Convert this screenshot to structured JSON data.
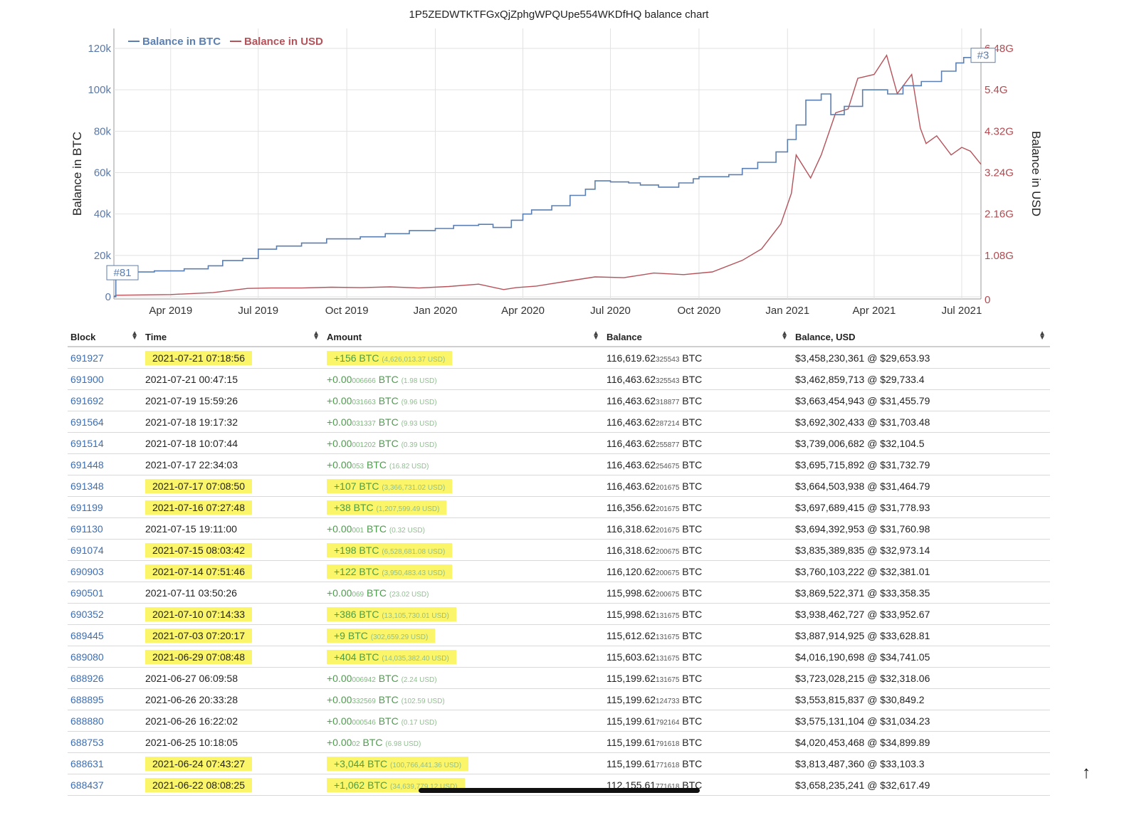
{
  "chart_data": {
    "type": "line",
    "title": "1P5ZEDWTKTFGxQjZphgWPQUpe554WKDfHQ balance chart",
    "ylabel_left": "Balance in BTC",
    "ylabel_right": "Balance in USD",
    "legend": [
      "Balance in BTC",
      "Balance in USD"
    ],
    "legend_position": "top-left",
    "grid": true,
    "colors": {
      "btc": "#5b7fb0",
      "usd": "#b5525a"
    },
    "y_left_ticks": [
      "0",
      "20k",
      "40k",
      "60k",
      "80k",
      "100k",
      "120k"
    ],
    "y_left_values": [
      0,
      20000,
      40000,
      60000,
      80000,
      100000,
      120000
    ],
    "y_right_ticks": [
      "0",
      "1.08G",
      "2.16G",
      "3.24G",
      "4.32G",
      "5.4G",
      "6.48G"
    ],
    "y_right_values": [
      0,
      1080000000,
      2160000000,
      3240000000,
      4320000000,
      5400000000,
      6480000000
    ],
    "x_ticks": [
      "Apr 2019",
      "Jul 2019",
      "Oct 2019",
      "Jan 2020",
      "Apr 2020",
      "Jul 2020",
      "Oct 2020",
      "Jan 2021",
      "Apr 2021",
      "Jul 2021"
    ],
    "x_tick_dates": [
      "2019-04-01",
      "2019-07-01",
      "2019-10-01",
      "2020-01-01",
      "2020-04-01",
      "2020-07-01",
      "2020-10-01",
      "2021-01-01",
      "2021-04-01",
      "2021-07-01"
    ],
    "x_range": [
      "2019-02-01",
      "2021-07-21"
    ],
    "annotations": [
      {
        "label": "#81",
        "date": "2019-02-01",
        "y": 12000
      },
      {
        "label": "#3",
        "date": "2021-07-21",
        "y": 117000
      }
    ],
    "series": [
      {
        "name": "Balance in BTC",
        "axis": "left",
        "points": [
          [
            "2019-02-01",
            0
          ],
          [
            "2019-02-03",
            12000
          ],
          [
            "2019-03-15",
            12500
          ],
          [
            "2019-04-15",
            13500
          ],
          [
            "2019-05-10",
            15000
          ],
          [
            "2019-05-25",
            17500
          ],
          [
            "2019-06-15",
            18500
          ],
          [
            "2019-07-01",
            23000
          ],
          [
            "2019-07-20",
            24500
          ],
          [
            "2019-08-15",
            26000
          ],
          [
            "2019-09-10",
            28000
          ],
          [
            "2019-10-01",
            28000
          ],
          [
            "2019-10-15",
            29000
          ],
          [
            "2019-11-10",
            30500
          ],
          [
            "2019-12-05",
            32000
          ],
          [
            "2020-01-01",
            33000
          ],
          [
            "2020-01-20",
            34500
          ],
          [
            "2020-02-15",
            35000
          ],
          [
            "2020-03-01",
            33500
          ],
          [
            "2020-03-20",
            37000
          ],
          [
            "2020-04-01",
            40000
          ],
          [
            "2020-04-10",
            42000
          ],
          [
            "2020-05-01",
            44000
          ],
          [
            "2020-05-20",
            49000
          ],
          [
            "2020-06-05",
            52000
          ],
          [
            "2020-06-15",
            56000
          ],
          [
            "2020-07-01",
            55500
          ],
          [
            "2020-07-20",
            55000
          ],
          [
            "2020-08-01",
            54000
          ],
          [
            "2020-08-20",
            53000
          ],
          [
            "2020-09-10",
            55000
          ],
          [
            "2020-09-25",
            57000
          ],
          [
            "2020-10-01",
            58000
          ],
          [
            "2020-11-01",
            59000
          ],
          [
            "2020-11-15",
            62000
          ],
          [
            "2020-12-01",
            65000
          ],
          [
            "2020-12-20",
            70000
          ],
          [
            "2021-01-01",
            76000
          ],
          [
            "2021-01-10",
            83000
          ],
          [
            "2021-01-20",
            95000
          ],
          [
            "2021-02-05",
            98000
          ],
          [
            "2021-02-15",
            88000
          ],
          [
            "2021-03-01",
            92000
          ],
          [
            "2021-03-20",
            100000
          ],
          [
            "2021-04-01",
            100000
          ],
          [
            "2021-04-15",
            98000
          ],
          [
            "2021-05-01",
            102000
          ],
          [
            "2021-05-20",
            104000
          ],
          [
            "2021-06-10",
            109000
          ],
          [
            "2021-06-25",
            113000
          ],
          [
            "2021-07-03",
            115600
          ],
          [
            "2021-07-15",
            116300
          ],
          [
            "2021-07-21",
            116620
          ]
        ]
      },
      {
        "name": "Balance in USD",
        "axis": "right",
        "points": [
          [
            "2019-02-01",
            0
          ],
          [
            "2019-02-03",
            40000000
          ],
          [
            "2019-04-01",
            60000000
          ],
          [
            "2019-05-15",
            110000000
          ],
          [
            "2019-06-20",
            220000000
          ],
          [
            "2019-07-15",
            230000000
          ],
          [
            "2019-08-15",
            230000000
          ],
          [
            "2019-09-15",
            250000000
          ],
          [
            "2019-10-15",
            240000000
          ],
          [
            "2019-11-15",
            260000000
          ],
          [
            "2019-12-15",
            230000000
          ],
          [
            "2020-01-15",
            270000000
          ],
          [
            "2020-02-15",
            330000000
          ],
          [
            "2020-03-12",
            190000000
          ],
          [
            "2020-03-25",
            240000000
          ],
          [
            "2020-04-15",
            280000000
          ],
          [
            "2020-05-15",
            400000000
          ],
          [
            "2020-06-15",
            520000000
          ],
          [
            "2020-07-15",
            500000000
          ],
          [
            "2020-08-15",
            620000000
          ],
          [
            "2020-09-15",
            580000000
          ],
          [
            "2020-10-15",
            650000000
          ],
          [
            "2020-11-15",
            950000000
          ],
          [
            "2020-12-05",
            1250000000
          ],
          [
            "2020-12-25",
            1900000000
          ],
          [
            "2021-01-05",
            2700000000
          ],
          [
            "2021-01-10",
            3700000000
          ],
          [
            "2021-01-25",
            3100000000
          ],
          [
            "2021-02-05",
            3700000000
          ],
          [
            "2021-02-20",
            4800000000
          ],
          [
            "2021-03-05",
            4900000000
          ],
          [
            "2021-03-15",
            5700000000
          ],
          [
            "2021-04-01",
            5800000000
          ],
          [
            "2021-04-14",
            6300000000
          ],
          [
            "2021-04-25",
            5300000000
          ],
          [
            "2021-05-10",
            5800000000
          ],
          [
            "2021-05-19",
            4400000000
          ],
          [
            "2021-05-25",
            4000000000
          ],
          [
            "2021-06-05",
            4200000000
          ],
          [
            "2021-06-20",
            3700000000
          ],
          [
            "2021-07-01",
            3900000000
          ],
          [
            "2021-07-10",
            3800000000
          ],
          [
            "2021-07-21",
            3458000000
          ]
        ]
      }
    ]
  },
  "table": {
    "headers": [
      "Block",
      "Time",
      "Amount",
      "Balance",
      "Balance, USD"
    ],
    "rows": [
      {
        "block": "691927",
        "time": "2021-07-21 07:18:56",
        "amt_main": "+156",
        "amt_small": "",
        "amt_unit": "BTC",
        "amt_usd": "(4,626,013.37 USD)",
        "bal_main": "116,619.62",
        "bal_small": "325543",
        "bal_unit": "BTC",
        "usd": "$3,458,230,361 @ $29,653.93",
        "hl": true
      },
      {
        "block": "691900",
        "time": "2021-07-21 00:47:15",
        "amt_main": "+0.00",
        "amt_small": "006666",
        "amt_unit": "BTC",
        "amt_usd": "(1.98 USD)",
        "bal_main": "116,463.62",
        "bal_small": "325543",
        "bal_unit": "BTC",
        "usd": "$3,462,859,713 @ $29,733.4",
        "hl": false
      },
      {
        "block": "691692",
        "time": "2021-07-19 15:59:26",
        "amt_main": "+0.00",
        "amt_small": "031663",
        "amt_unit": "BTC",
        "amt_usd": "(9.96 USD)",
        "bal_main": "116,463.62",
        "bal_small": "318877",
        "bal_unit": "BTC",
        "usd": "$3,663,454,943 @ $31,455.79",
        "hl": false
      },
      {
        "block": "691564",
        "time": "2021-07-18 19:17:32",
        "amt_main": "+0.00",
        "amt_small": "031337",
        "amt_unit": "BTC",
        "amt_usd": "(9.93 USD)",
        "bal_main": "116,463.62",
        "bal_small": "287214",
        "bal_unit": "BTC",
        "usd": "$3,692,302,433 @ $31,703.48",
        "hl": false
      },
      {
        "block": "691514",
        "time": "2021-07-18 10:07:44",
        "amt_main": "+0.00",
        "amt_small": "001202",
        "amt_unit": "BTC",
        "amt_usd": "(0.39 USD)",
        "bal_main": "116,463.62",
        "bal_small": "255877",
        "bal_unit": "BTC",
        "usd": "$3,739,006,682 @ $32,104.5",
        "hl": false
      },
      {
        "block": "691448",
        "time": "2021-07-17 22:34:03",
        "amt_main": "+0.00",
        "amt_small": "053",
        "amt_unit": "BTC",
        "amt_usd": "(16.82 USD)",
        "bal_main": "116,463.62",
        "bal_small": "254675",
        "bal_unit": "BTC",
        "usd": "$3,695,715,892 @ $31,732.79",
        "hl": false
      },
      {
        "block": "691348",
        "time": "2021-07-17 07:08:50",
        "amt_main": "+107",
        "amt_small": "",
        "amt_unit": "BTC",
        "amt_usd": "(3,366,731.02 USD)",
        "bal_main": "116,463.62",
        "bal_small": "201675",
        "bal_unit": "BTC",
        "usd": "$3,664,503,938 @ $31,464.79",
        "hl": true
      },
      {
        "block": "691199",
        "time": "2021-07-16 07:27:48",
        "amt_main": "+38",
        "amt_small": "",
        "amt_unit": "BTC",
        "amt_usd": "(1,207,599.49 USD)",
        "bal_main": "116,356.62",
        "bal_small": "201675",
        "bal_unit": "BTC",
        "usd": "$3,697,689,415 @ $31,778.93",
        "hl": true
      },
      {
        "block": "691130",
        "time": "2021-07-15 19:11:00",
        "amt_main": "+0.00",
        "amt_small": "001",
        "amt_unit": "BTC",
        "amt_usd": "(0.32 USD)",
        "bal_main": "116,318.62",
        "bal_small": "201675",
        "bal_unit": "BTC",
        "usd": "$3,694,392,953 @ $31,760.98",
        "hl": false
      },
      {
        "block": "691074",
        "time": "2021-07-15 08:03:42",
        "amt_main": "+198",
        "amt_small": "",
        "amt_unit": "BTC",
        "amt_usd": "(6,528,681.08 USD)",
        "bal_main": "116,318.62",
        "bal_small": "200675",
        "bal_unit": "BTC",
        "usd": "$3,835,389,835 @ $32,973.14",
        "hl": true
      },
      {
        "block": "690903",
        "time": "2021-07-14 07:51:46",
        "amt_main": "+122",
        "amt_small": "",
        "amt_unit": "BTC",
        "amt_usd": "(3,950,483.43 USD)",
        "bal_main": "116,120.62",
        "bal_small": "200675",
        "bal_unit": "BTC",
        "usd": "$3,760,103,222 @ $32,381.01",
        "hl": true
      },
      {
        "block": "690501",
        "time": "2021-07-11 03:50:26",
        "amt_main": "+0.00",
        "amt_small": "069",
        "amt_unit": "BTC",
        "amt_usd": "(23.02 USD)",
        "bal_main": "115,998.62",
        "bal_small": "200675",
        "bal_unit": "BTC",
        "usd": "$3,869,522,371 @ $33,358.35",
        "hl": false
      },
      {
        "block": "690352",
        "time": "2021-07-10 07:14:33",
        "amt_main": "+386",
        "amt_small": "",
        "amt_unit": "BTC",
        "amt_usd": "(13,105,730.01 USD)",
        "bal_main": "115,998.62",
        "bal_small": "131675",
        "bal_unit": "BTC",
        "usd": "$3,938,462,727 @ $33,952.67",
        "hl": true
      },
      {
        "block": "689445",
        "time": "2021-07-03 07:20:17",
        "amt_main": "+9",
        "amt_small": "",
        "amt_unit": "BTC",
        "amt_usd": "(302,659.29 USD)",
        "bal_main": "115,612.62",
        "bal_small": "131675",
        "bal_unit": "BTC",
        "usd": "$3,887,914,925 @ $33,628.81",
        "hl": true
      },
      {
        "block": "689080",
        "time": "2021-06-29 07:08:48",
        "amt_main": "+404",
        "amt_small": "",
        "amt_unit": "BTC",
        "amt_usd": "(14,035,382.40 USD)",
        "bal_main": "115,603.62",
        "bal_small": "131675",
        "bal_unit": "BTC",
        "usd": "$4,016,190,698 @ $34,741.05",
        "hl": true
      },
      {
        "block": "688926",
        "time": "2021-06-27 06:09:58",
        "amt_main": "+0.00",
        "amt_small": "006942",
        "amt_unit": "BTC",
        "amt_usd": "(2.24 USD)",
        "bal_main": "115,199.62",
        "bal_small": "131675",
        "bal_unit": "BTC",
        "usd": "$3,723,028,215 @ $32,318.06",
        "hl": false
      },
      {
        "block": "688895",
        "time": "2021-06-26 20:33:28",
        "amt_main": "+0.00",
        "amt_small": "332569",
        "amt_unit": "BTC",
        "amt_usd": "(102.59 USD)",
        "bal_main": "115,199.62",
        "bal_small": "124733",
        "bal_unit": "BTC",
        "usd": "$3,553,815,837 @ $30,849.2",
        "hl": false
      },
      {
        "block": "688880",
        "time": "2021-06-26 16:22:02",
        "amt_main": "+0.00",
        "amt_small": "000546",
        "amt_unit": "BTC",
        "amt_usd": "(0.17 USD)",
        "bal_main": "115,199.61",
        "bal_small": "792164",
        "bal_unit": "BTC",
        "usd": "$3,575,131,104 @ $31,034.23",
        "hl": false
      },
      {
        "block": "688753",
        "time": "2021-06-25 10:18:05",
        "amt_main": "+0.00",
        "amt_small": "02",
        "amt_unit": "BTC",
        "amt_usd": "(6.98 USD)",
        "bal_main": "115,199.61",
        "bal_small": "791618",
        "bal_unit": "BTC",
        "usd": "$4,020,453,468 @ $34,899.89",
        "hl": false
      },
      {
        "block": "688631",
        "time": "2021-06-24 07:43:27",
        "amt_main": "+3,044",
        "amt_small": "",
        "amt_unit": "BTC",
        "amt_usd": "(100,766,441.36 USD)",
        "bal_main": "115,199.61",
        "bal_small": "771618",
        "bal_unit": "BTC",
        "usd": "$3,813,487,360 @ $33,103.3",
        "hl": true
      },
      {
        "block": "688437",
        "time": "2021-06-22 08:08:25",
        "amt_main": "+1,062",
        "amt_small": "",
        "amt_unit": "BTC",
        "amt_usd": "(34,639,779.12 USD)",
        "bal_main": "112,155.61",
        "bal_small": "771618",
        "bal_unit": "BTC",
        "usd": "$3,658,235,241 @ $32,617.49",
        "hl": true
      }
    ]
  },
  "icons": {
    "sort": "sort-icon",
    "back_to_top": "arrow-up-icon"
  },
  "arrow_glyph": "↑"
}
